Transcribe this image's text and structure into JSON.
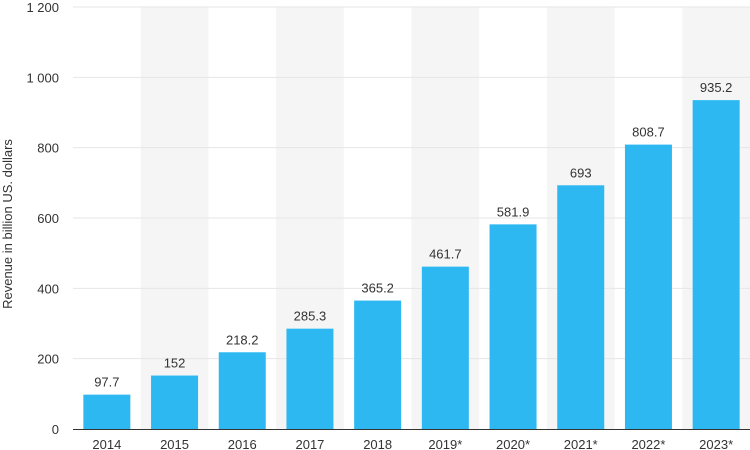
{
  "chart_data": {
    "type": "bar",
    "categories": [
      "2014",
      "2015",
      "2016",
      "2017",
      "2018",
      "2019*",
      "2020*",
      "2021*",
      "2022*",
      "2023*"
    ],
    "values": [
      97.7,
      152,
      218.2,
      285.3,
      365.2,
      461.7,
      581.9,
      693,
      808.7,
      935.2
    ],
    "value_labels": [
      "97.7",
      "152",
      "218.2",
      "285.3",
      "365.2",
      "461.7",
      "581.9",
      "693",
      "808.7",
      "935.2"
    ],
    "ylabel": "Revenue in billion US. dollars",
    "xlabel": "",
    "ylim": [
      0,
      1200
    ],
    "yticks": [
      0,
      200,
      400,
      600,
      800,
      1000,
      1200
    ],
    "ytick_labels": [
      "0",
      "200",
      "400",
      "600",
      "800",
      "1 000",
      "1 200"
    ],
    "grid": true,
    "bar_color": "#2db8f2",
    "band_color": "#f5f5f5",
    "grid_color": "#e6e6e6",
    "axis_color": "#333333"
  }
}
